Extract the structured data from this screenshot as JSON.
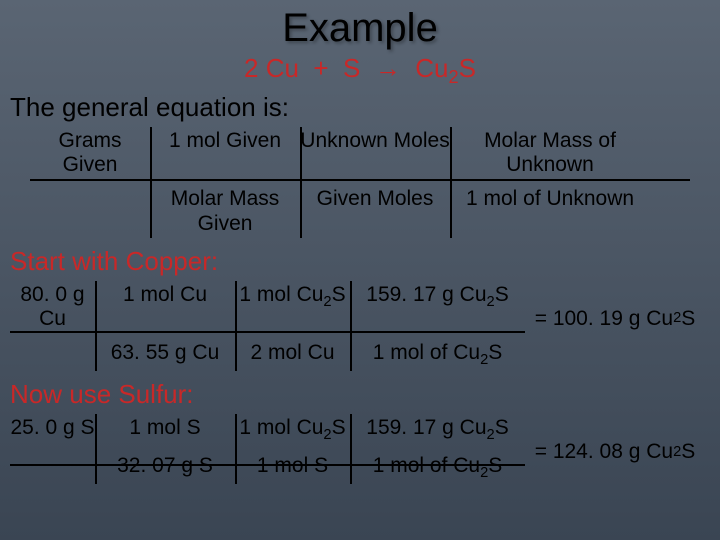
{
  "title": "Example",
  "equation_html": "2 Cu&nbsp;&nbsp;+&nbsp;&nbsp;S&nbsp;&nbsp;<span class='arrow'>&#8594;</span>&nbsp;&nbsp;Cu<span class='sub'>2</span>S",
  "general_heading": "The general equation is:",
  "gen": {
    "r1c1": "Grams Given",
    "r1c2": "1 mol Given",
    "r1c3": "Unknown Moles",
    "r1c4": "Molar Mass of Unknown",
    "r2c2": "Molar Mass Given",
    "r2c3": "Given Moles",
    "r2c4": "1 mol of Unknown"
  },
  "copper_heading": "Start with Copper:",
  "cop": {
    "r1c1": "80. 0 g Cu",
    "r1c2": "1 mol Cu",
    "r1c3_html": "1 mol Cu<span class='sub'>2</span>S",
    "r1c4_html": "159. 17 g Cu<span class='sub'>2</span>S",
    "r2c2": "63. 55 g Cu",
    "r2c3": "2 mol Cu",
    "r2c4_html": "1 mol of Cu<span class='sub'>2</span>S",
    "result_html": "= 100. 19 g Cu<span class='sub'>2</span>S"
  },
  "sulfur_heading": "Now use Sulfur:",
  "sul": {
    "r1c1": "25. 0 g S",
    "r1c2": "1 mol S",
    "r1c3_html": "1 mol Cu<span class='sub'>2</span>S",
    "r1c4_html": "159. 17 g Cu<span class='sub'>2</span>S",
    "r2c2": "32. 07 g S",
    "r2c3": "1 mol S",
    "r2c4_html": "1 mol of Cu<span class='sub'>2</span>S",
    "result_html": "= 124. 08 g Cu<span class='sub'>2</span>S"
  }
}
